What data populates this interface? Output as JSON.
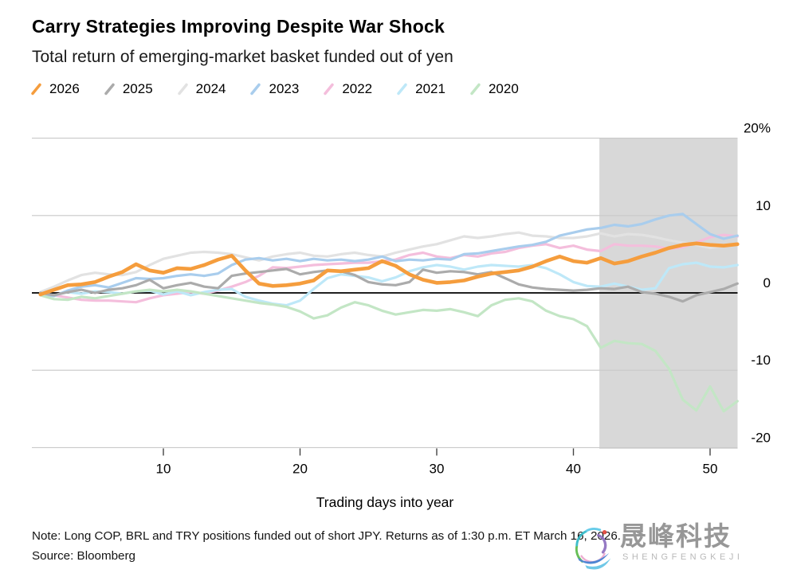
{
  "footer": {
    "note": "Note: Long COP, BRL and TRY positions funded out of short JPY. Returns as of 1:30 p.m. ET March 16, 2026.",
    "source": "Source: Bloomberg"
  },
  "watermark": {
    "name_cn": "晟峰科技",
    "name_en": "SHENGFENGKEJI"
  },
  "chart_data": {
    "type": "line",
    "title": "Carry Strategies Improving Despite War Shock",
    "subtitle": "Total return of emerging-market basket funded out of yen",
    "xlabel": "Trading days into year",
    "ylabel": "",
    "x": {
      "min": 1,
      "max": 52,
      "ticks": [
        10,
        20,
        30,
        40,
        50
      ]
    },
    "y": {
      "min": -20,
      "max": 20,
      "unit": "%",
      "ticks": [
        {
          "value": 20,
          "label": "20%"
        },
        {
          "value": 10,
          "label": "10"
        },
        {
          "value": 0,
          "label": "0"
        },
        {
          "value": -10,
          "label": "-10"
        },
        {
          "value": -20,
          "label": "-20"
        }
      ]
    },
    "zero_line": true,
    "grid": "horizontal",
    "legend_position": "top",
    "shaded_region": {
      "from_day": 41.9,
      "to_day": 52.2,
      "color": "#D8D8D8"
    },
    "draw_order": [
      "2024",
      "2022",
      "2021",
      "2023",
      "2020",
      "2025",
      "2026"
    ],
    "series": [
      {
        "name": "2026",
        "color": "#F59D3D",
        "width": 4.6,
        "values": [
          -0.2,
          0.4,
          1.0,
          1.1,
          1.4,
          2.1,
          2.7,
          3.7,
          2.9,
          2.6,
          3.2,
          3.1,
          3.6,
          4.3,
          4.8,
          2.9,
          1.2,
          0.9,
          1.0,
          1.2,
          1.6,
          2.9,
          2.8,
          3.0,
          3.2,
          4.1,
          3.5,
          2.4,
          1.7,
          1.3,
          1.4,
          1.6,
          2.1,
          2.5,
          2.7,
          2.9,
          3.4,
          4.1,
          4.7,
          4.1,
          3.9,
          4.5,
          3.8,
          4.1,
          4.7,
          5.2,
          5.8,
          6.2,
          6.4,
          6.2,
          6.1,
          6.3
        ]
      },
      {
        "name": "2025",
        "color": "#ABABAB",
        "width": 3.2,
        "values": [
          0.0,
          -0.3,
          0.1,
          0.4,
          0.0,
          0.4,
          0.6,
          1.0,
          1.7,
          0.6,
          1.0,
          1.3,
          0.8,
          0.6,
          2.2,
          2.5,
          2.7,
          2.9,
          3.1,
          2.4,
          2.7,
          2.9,
          2.8,
          2.3,
          1.4,
          1.1,
          1.0,
          1.4,
          3.0,
          2.6,
          2.8,
          2.7,
          2.4,
          2.7,
          1.9,
          1.1,
          0.7,
          0.5,
          0.4,
          0.3,
          0.4,
          0.6,
          0.5,
          0.8,
          0.1,
          -0.1,
          -0.5,
          -1.1,
          -0.3,
          0.1,
          0.5,
          1.2
        ]
      },
      {
        "name": "2024",
        "color": "#E2E2E2",
        "width": 3.2,
        "values": [
          0.1,
          0.8,
          1.6,
          2.3,
          2.6,
          2.4,
          2.3,
          2.7,
          3.6,
          4.4,
          4.8,
          5.2,
          5.3,
          5.2,
          5.0,
          4.6,
          4.2,
          4.7,
          5.0,
          5.2,
          4.8,
          4.7,
          5.0,
          5.2,
          4.9,
          4.7,
          5.2,
          5.6,
          6.0,
          6.3,
          6.8,
          7.3,
          7.1,
          7.3,
          7.6,
          7.8,
          7.4,
          7.3,
          7.1,
          7.1,
          7.3,
          7.7,
          7.3,
          7.6,
          7.5,
          7.2,
          6.8,
          6.5,
          6.2,
          5.8,
          6.1,
          6.3
        ]
      },
      {
        "name": "2023",
        "color": "#A9CDED",
        "width": 3.2,
        "values": [
          -0.2,
          -0.4,
          0.3,
          0.8,
          1.0,
          0.7,
          1.3,
          1.9,
          1.8,
          1.9,
          2.2,
          2.4,
          2.2,
          2.5,
          3.6,
          4.3,
          4.5,
          4.2,
          4.4,
          4.1,
          4.4,
          4.2,
          4.3,
          4.1,
          4.3,
          4.7,
          4.1,
          4.3,
          4.2,
          4.4,
          4.3,
          5.0,
          5.1,
          5.4,
          5.7,
          6.0,
          6.2,
          6.6,
          7.4,
          7.8,
          8.2,
          8.4,
          8.8,
          8.6,
          8.9,
          9.5,
          10.0,
          10.2,
          8.9,
          7.6,
          7.0,
          7.4
        ]
      },
      {
        "name": "2022",
        "color": "#F4BEDC",
        "width": 3.2,
        "values": [
          -0.1,
          -0.3,
          -0.6,
          -0.9,
          -1.0,
          -1.0,
          -1.1,
          -1.2,
          -0.7,
          -0.3,
          -0.1,
          0.1,
          -0.1,
          0.3,
          0.8,
          1.4,
          2.2,
          3.3,
          3.2,
          3.4,
          3.6,
          3.7,
          3.8,
          3.9,
          3.9,
          4.1,
          4.3,
          4.9,
          5.2,
          4.7,
          4.5,
          4.9,
          4.7,
          5.1,
          5.3,
          5.8,
          6.1,
          6.3,
          5.8,
          6.1,
          5.6,
          5.4,
          6.3,
          6.1,
          6.1,
          6.0,
          5.7,
          5.9,
          6.5,
          7.2,
          7.5,
          7.3
        ]
      },
      {
        "name": "2021",
        "color": "#BEE8F8",
        "width": 3.2,
        "values": [
          -0.1,
          -0.3,
          0.1,
          -0.1,
          0.2,
          0.1,
          -0.1,
          0.2,
          0.3,
          -0.2,
          0.2,
          -0.3,
          0.1,
          0.4,
          0.5,
          -0.5,
          -1.0,
          -1.4,
          -1.6,
          -1.0,
          0.5,
          1.9,
          2.4,
          2.2,
          2.0,
          1.5,
          2.0,
          2.8,
          3.3,
          3.6,
          3.4,
          3.0,
          3.4,
          3.6,
          3.5,
          3.4,
          3.6,
          3.2,
          2.4,
          1.4,
          0.9,
          0.8,
          1.2,
          0.8,
          0.4,
          0.6,
          3.2,
          3.7,
          3.9,
          3.4,
          3.3,
          3.6
        ]
      },
      {
        "name": "2020",
        "color": "#C3E6C5",
        "width": 3.2,
        "values": [
          -0.3,
          -0.8,
          -0.9,
          -0.5,
          -0.7,
          -0.4,
          -0.1,
          0.2,
          0.4,
          0.2,
          0.4,
          0.2,
          -0.1,
          -0.4,
          -0.7,
          -1.0,
          -1.3,
          -1.5,
          -1.8,
          -2.4,
          -3.3,
          -2.9,
          -1.9,
          -1.2,
          -1.6,
          -2.3,
          -2.8,
          -2.5,
          -2.2,
          -2.3,
          -2.1,
          -2.5,
          -3.0,
          -1.6,
          -0.9,
          -0.7,
          -1.1,
          -2.3,
          -3.0,
          -3.4,
          -4.3,
          -7.1,
          -6.2,
          -6.5,
          -6.6,
          -7.5,
          -9.8,
          -13.8,
          -15.2,
          -12.1,
          -15.3,
          -14.0
        ]
      }
    ]
  }
}
